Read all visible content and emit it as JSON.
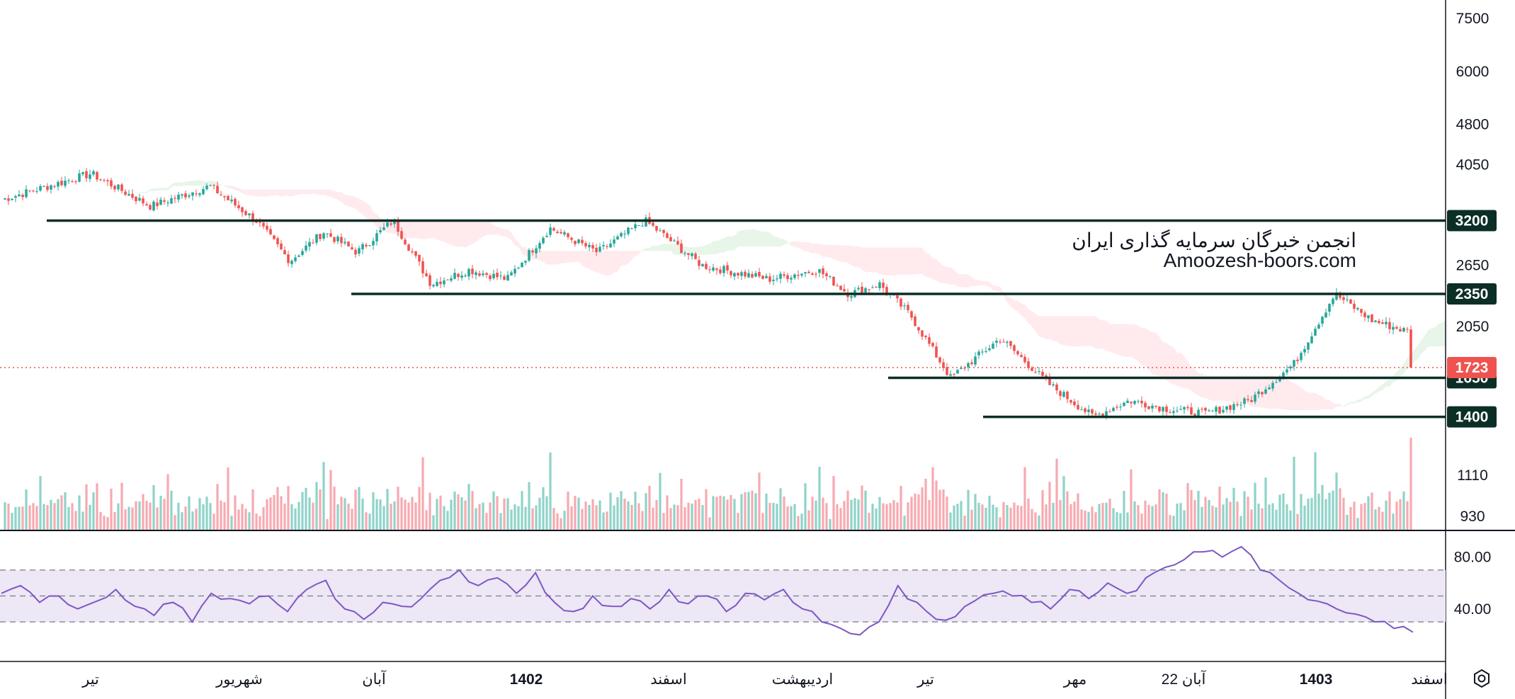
{
  "watermark": {
    "line1": "انجمن خبرگان سرمایه گذاری ایران",
    "line2": "Amoozesh-boors.com"
  },
  "time_axis": {
    "labels": [
      {
        "text": "تیر",
        "bold": false
      },
      {
        "text": "شهریور",
        "bold": false
      },
      {
        "text": "آبان",
        "bold": false
      },
      {
        "text": "1402",
        "bold": true
      },
      {
        "text": "اسفند",
        "bold": false
      },
      {
        "text": "اردیبهشت",
        "bold": false
      },
      {
        "text": "تیر",
        "bold": false
      },
      {
        "text": "مهر",
        "bold": false
      },
      {
        "text": "22 آبان",
        "bold": false
      },
      {
        "text": "1403",
        "bold": true
      },
      {
        "text": "اسفند",
        "bold": false
      }
    ]
  },
  "colors": {
    "up": "#26a69a",
    "down": "#ef5350",
    "volume_up": "#8fd3c9",
    "volume_down": "#f7a9b0",
    "level_line": "#0b2e26",
    "last_price": "#ef5350",
    "rsi_line": "#7e57c2",
    "rsi_band": "#ede7f6",
    "cloud_green": "#e8f5e9",
    "cloud_red": "#ffebee"
  },
  "settings_icon": "gear-icon",
  "chart_data": [
    {
      "type": "candlestick",
      "scale": "log",
      "ylim": [
        1300,
        7900
      ],
      "yticks": [
        7500,
        6000,
        4800,
        4050,
        2650,
        2050
      ],
      "horizontal_levels": [
        {
          "price": 3200,
          "label": "3200",
          "from": "تیر"
        },
        {
          "price": 2350,
          "label": "2350",
          "from": "آبان"
        },
        {
          "price": 1650,
          "label": "1650",
          "from": "تیر"
        },
        {
          "price": 1400,
          "label": "1400",
          "from": "مهر"
        }
      ],
      "last_price": {
        "value": 1723,
        "label": "1723"
      },
      "close_path": [
        {
          "date": "تیر",
          "close": 3500
        },
        {
          "date": "تیر",
          "close": 3900
        },
        {
          "date": "تیر",
          "close": 3400
        },
        {
          "date": "تیر",
          "close": 3700
        },
        {
          "date": "شهریور",
          "close": 3200
        },
        {
          "date": "شهریور",
          "close": 2700
        },
        {
          "date": "شهریور",
          "close": 3050
        },
        {
          "date": "شهریور",
          "close": 2800
        },
        {
          "date": "آبان",
          "close": 3200
        },
        {
          "date": "آبان",
          "close": 2450
        },
        {
          "date": "آبان",
          "close": 2600
        },
        {
          "date": "آبان",
          "close": 2500
        },
        {
          "date": "1402",
          "close": 3100
        },
        {
          "date": "1402",
          "close": 2800
        },
        {
          "date": "1402",
          "close": 3200
        },
        {
          "date": "اسفند",
          "close": 2650
        },
        {
          "date": "اسفند",
          "close": 2500
        },
        {
          "date": "اردیبهشت",
          "close": 2600
        },
        {
          "date": "اردیبهشت",
          "close": 2350
        },
        {
          "date": "اردیبهشت",
          "close": 2450
        },
        {
          "date": "اردیبهشت",
          "close": 2150
        },
        {
          "date": "تیر",
          "close": 1650
        },
        {
          "date": "تیر",
          "close": 1950
        },
        {
          "date": "تیر",
          "close": 1600
        },
        {
          "date": "مهر",
          "close": 1400
        },
        {
          "date": "مهر",
          "close": 1500
        },
        {
          "date": "مهر",
          "close": 1450
        },
        {
          "date": "22 آبان",
          "close": 1420
        },
        {
          "date": "22 آبان",
          "close": 1500
        },
        {
          "date": "22 آبان",
          "close": 1750
        },
        {
          "date": "1403",
          "close": 2350
        },
        {
          "date": "1403",
          "close": 2100
        },
        {
          "date": "1403",
          "close": 2000
        },
        {
          "date": "اسفند",
          "close": 1723
        }
      ]
    },
    {
      "type": "bar",
      "name": "volume",
      "yticks": [
        1110,
        930
      ]
    },
    {
      "type": "line",
      "name": "RSI",
      "ylim": [
        0,
        100
      ],
      "yticks": [
        80.0,
        40.0
      ],
      "band": [
        30,
        70
      ],
      "midline": 50,
      "values": [
        52,
        58,
        45,
        50,
        40,
        46,
        55,
        42,
        35,
        45,
        30,
        52,
        48,
        44,
        50,
        38,
        55,
        62,
        40,
        32,
        45,
        42,
        48,
        62,
        70,
        58,
        64,
        52,
        68,
        45,
        38,
        50,
        42,
        48,
        40,
        55,
        44,
        50,
        38,
        52,
        47,
        55,
        40,
        30,
        25,
        20,
        30,
        58,
        45,
        32,
        34,
        46,
        52,
        50,
        45,
        40,
        55,
        48,
        60,
        52,
        64,
        72,
        78,
        84,
        80,
        88,
        70,
        62,
        52,
        46,
        40,
        36,
        30,
        25,
        22
      ]
    }
  ]
}
